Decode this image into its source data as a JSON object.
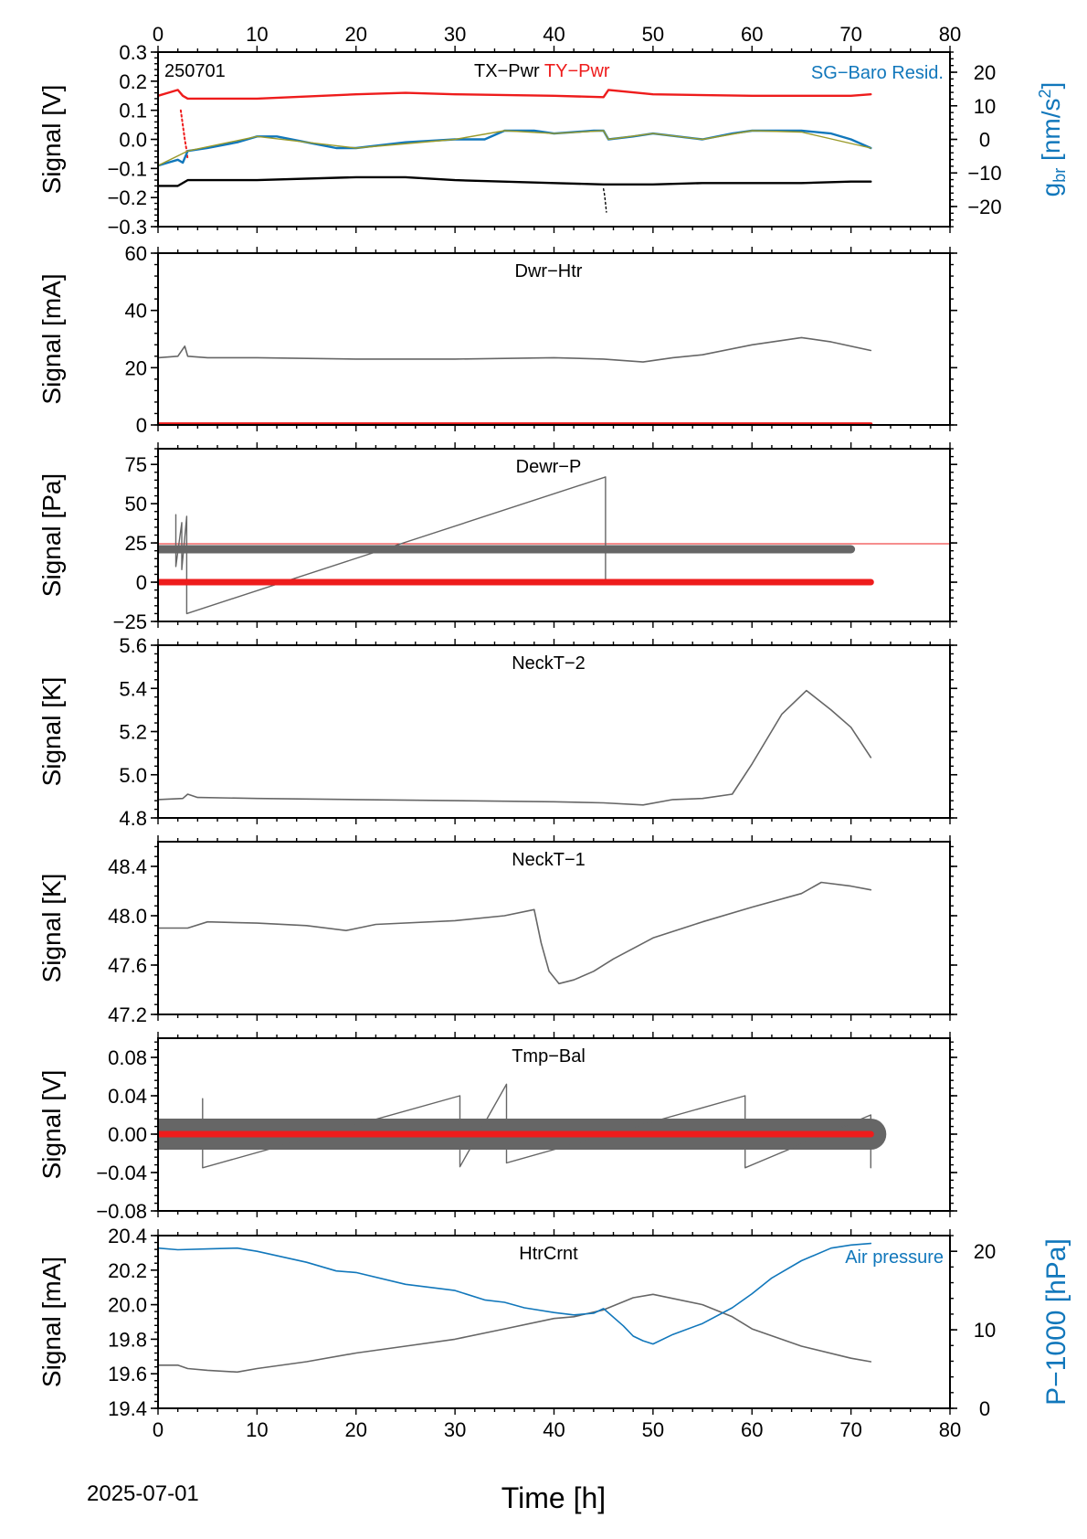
{
  "footer": {
    "date": "2025-07-01",
    "xlabel": "Time [h]"
  },
  "colors": {
    "black": "#000000",
    "red": "#ee1c1c",
    "blue": "#1177bb",
    "gray": "#666666",
    "olive": "#9a9a2a"
  },
  "chart_data": [
    {
      "id": "p1",
      "type": "line",
      "title": "TX−Pwr",
      "title2": "TY−Pwr",
      "corner_label": "250701",
      "right_label": "SG−Baro Resid.",
      "ylabel": "Signal [V]",
      "y2label_main": "g",
      "y2label_sub": "br",
      "y2label_tail": " [nm/s",
      "y2label_sup": "2",
      "y2label_end": "]",
      "xlim": [
        0,
        80
      ],
      "ylim": [
        -0.3,
        0.3
      ],
      "yticks": [
        -0.3,
        -0.2,
        -0.1,
        0.0,
        0.1,
        0.2,
        0.3
      ],
      "ytick_labels": [
        "−0.3",
        "−0.2",
        "−0.1",
        "0.0",
        "0.1",
        "0.2",
        "0.3"
      ],
      "y2lim": [
        -26,
        26
      ],
      "y2ticks": [
        -20,
        -10,
        0,
        10,
        20
      ],
      "y2tick_labels": [
        "−20",
        "−10",
        "0",
        "10",
        "20"
      ],
      "series": [
        {
          "color": "red",
          "width": 2.4,
          "x": [
            0,
            1,
            2,
            2.5,
            3,
            5,
            10,
            20,
            25,
            30,
            40,
            45,
            45.5,
            50,
            60,
            65,
            70,
            72
          ],
          "y": [
            0.15,
            0.16,
            0.17,
            0.15,
            0.14,
            0.14,
            0.14,
            0.155,
            0.16,
            0.155,
            0.15,
            0.145,
            0.17,
            0.155,
            0.15,
            0.15,
            0.15,
            0.155
          ]
        },
        {
          "color": "red",
          "width": 2.0,
          "dotted": true,
          "x": [
            2.3,
            2.5,
            2.7,
            2.9,
            3.0
          ],
          "y": [
            0.1,
            0.05,
            0.0,
            -0.04,
            -0.07
          ]
        },
        {
          "color": "blue",
          "width": 2.4,
          "x": [
            0,
            1,
            2,
            2.5,
            3,
            5,
            8,
            10,
            12,
            15,
            18,
            20,
            25,
            30,
            33,
            35,
            38,
            40,
            44,
            45,
            45.5,
            48,
            50,
            55,
            58,
            60,
            65,
            68,
            70,
            72
          ],
          "y": [
            -0.09,
            -0.08,
            -0.07,
            -0.08,
            -0.04,
            -0.03,
            -0.01,
            0.01,
            0.01,
            -0.01,
            -0.03,
            -0.03,
            -0.01,
            0.0,
            0.0,
            0.03,
            0.03,
            0.02,
            0.03,
            0.03,
            0.0,
            0.01,
            0.02,
            0.0,
            0.02,
            0.03,
            0.03,
            0.02,
            0.0,
            -0.03
          ]
        },
        {
          "color": "olive",
          "width": 1.4,
          "x": [
            0,
            3,
            10,
            20,
            30,
            35,
            40,
            45,
            45.5,
            50,
            55,
            60,
            65,
            72
          ],
          "y": [
            -0.09,
            -0.04,
            0.01,
            -0.03,
            0.0,
            0.03,
            0.02,
            0.03,
            0.0,
            0.02,
            0.0,
            0.03,
            0.025,
            -0.03
          ]
        },
        {
          "color": "black",
          "width": 2.4,
          "x": [
            0,
            2,
            3,
            5,
            10,
            20,
            25,
            30,
            40,
            45,
            50,
            55,
            60,
            65,
            70,
            72
          ],
          "y": [
            -0.16,
            -0.16,
            -0.14,
            -0.14,
            -0.14,
            -0.13,
            -0.13,
            -0.14,
            -0.15,
            -0.155,
            -0.155,
            -0.15,
            -0.15,
            -0.15,
            -0.145,
            -0.145
          ]
        },
        {
          "color": "black",
          "width": 1.4,
          "dotted": true,
          "x": [
            45,
            45.1,
            45.2,
            45.3
          ],
          "y": [
            -0.17,
            -0.19,
            -0.22,
            -0.25
          ]
        }
      ]
    },
    {
      "id": "p2",
      "type": "line",
      "title": "Dwr−Htr",
      "ylabel": "Signal [mA]",
      "xlim": [
        0,
        80
      ],
      "ylim": [
        0,
        60
      ],
      "yticks": [
        0,
        20,
        40,
        60
      ],
      "ytick_labels": [
        "0",
        "20",
        "40",
        "60"
      ],
      "series": [
        {
          "color": "gray",
          "width": 1.6,
          "x": [
            0,
            2,
            2.7,
            3,
            5,
            10,
            20,
            30,
            40,
            45,
            49,
            52,
            55,
            60,
            65,
            68,
            72
          ],
          "y": [
            23.5,
            24,
            27.5,
            24,
            23.5,
            23.5,
            23,
            23,
            23.5,
            23,
            22,
            23.5,
            24.5,
            28,
            30.5,
            29,
            26
          ]
        },
        {
          "color": "red",
          "width": 4,
          "x": [
            0,
            72
          ],
          "y": [
            0.3,
            0.3
          ]
        }
      ]
    },
    {
      "id": "p3",
      "type": "line",
      "title": "Dewr−P",
      "ylabel": "Signal [Pa]",
      "xlim": [
        0,
        80
      ],
      "ylim": [
        -25,
        85
      ],
      "yticks": [
        -25,
        0,
        25,
        50,
        75
      ],
      "ytick_labels": [
        "−25",
        "0",
        "25",
        "50",
        "75"
      ],
      "series": [
        {
          "color": "red",
          "width": 0.9,
          "x": [
            0,
            80
          ],
          "y": [
            24.5,
            24.5
          ]
        },
        {
          "color": "gray",
          "width": 9,
          "x": [
            0,
            10,
            20,
            30,
            40,
            50,
            60,
            70
          ],
          "y": [
            21,
            21,
            21,
            21,
            21,
            21,
            21,
            21
          ]
        },
        {
          "color": "gray",
          "width": 1.4,
          "x": [
            1.8,
            1.8,
            2.4,
            2.4,
            2.9,
            2.9,
            45.2,
            45.2
          ],
          "y": [
            43,
            10,
            38,
            8,
            42,
            -20,
            67,
            0
          ]
        },
        {
          "color": "red",
          "width": 7,
          "x": [
            0,
            72
          ],
          "y": [
            0,
            0
          ]
        }
      ]
    },
    {
      "id": "p4",
      "type": "line",
      "title": "NeckT−2",
      "ylabel": "Signal [K]",
      "xlim": [
        0,
        80
      ],
      "ylim": [
        4.8,
        5.6
      ],
      "yticks": [
        4.8,
        5.0,
        5.2,
        5.4,
        5.6
      ],
      "ytick_labels": [
        "4.8",
        "5.0",
        "5.2",
        "5.4",
        "5.6"
      ],
      "series": [
        {
          "color": "gray",
          "width": 1.6,
          "x": [
            0,
            2.5,
            3,
            4,
            10,
            20,
            30,
            40,
            45,
            49,
            52,
            55,
            58,
            60,
            63,
            65.5,
            68,
            70,
            72
          ],
          "y": [
            4.885,
            4.89,
            4.91,
            4.895,
            4.89,
            4.885,
            4.88,
            4.875,
            4.87,
            4.86,
            4.885,
            4.89,
            4.91,
            5.05,
            5.28,
            5.39,
            5.3,
            5.22,
            5.08
          ]
        }
      ]
    },
    {
      "id": "p5",
      "type": "line",
      "title": "NeckT−1",
      "ylabel": "Signal [K]",
      "xlim": [
        0,
        80
      ],
      "ylim": [
        47.2,
        48.6
      ],
      "yticks": [
        47.2,
        47.6,
        48.0,
        48.4
      ],
      "ytick_labels": [
        "47.2",
        "47.6",
        "48.0",
        "48.4"
      ],
      "series": [
        {
          "color": "gray",
          "width": 1.6,
          "x": [
            0,
            3,
            5,
            10,
            15,
            19,
            22,
            30,
            35,
            38,
            38.7,
            39.5,
            40.5,
            42,
            44,
            46,
            50,
            55,
            60,
            65,
            67,
            70,
            72
          ],
          "y": [
            47.9,
            47.9,
            47.95,
            47.94,
            47.92,
            47.88,
            47.93,
            47.96,
            48.0,
            48.05,
            47.78,
            47.55,
            47.45,
            47.48,
            47.55,
            47.65,
            47.82,
            47.95,
            48.07,
            48.18,
            48.27,
            48.24,
            48.21
          ]
        }
      ]
    },
    {
      "id": "p6",
      "type": "line",
      "title": "Tmp−Bal",
      "ylabel": "Signal [V]",
      "xlim": [
        0,
        80
      ],
      "ylim": [
        -0.08,
        0.1
      ],
      "yticks": [
        -0.08,
        -0.04,
        0.0,
        0.04,
        0.08
      ],
      "ytick_labels": [
        "−0.08",
        "−0.04",
        "0.00",
        "0.04",
        "0.08"
      ],
      "series": [
        {
          "color": "gray",
          "width": 34,
          "x": [
            0,
            10,
            20,
            30,
            40,
            50,
            60,
            72
          ],
          "y": [
            0.0,
            0.0,
            0.0,
            0.0,
            0.0,
            0.0,
            0.0,
            0.0
          ]
        },
        {
          "color": "gray",
          "width": 1.4,
          "x": [
            4.5,
            4.5,
            30.5,
            30.5,
            35.2,
            35.2,
            59.3,
            59.3,
            72,
            72
          ],
          "y": [
            0.037,
            -0.035,
            0.04,
            -0.034,
            0.052,
            -0.03,
            0.04,
            -0.035,
            0.02,
            -0.035
          ]
        },
        {
          "color": "red",
          "width": 7,
          "x": [
            0,
            72
          ],
          "y": [
            0,
            0
          ]
        }
      ]
    },
    {
      "id": "p7",
      "type": "line",
      "title": "HtrCrnt",
      "right_label": "Air pressure",
      "ylabel": "Signal [mA]",
      "y2label": "P−1000 [hPa]",
      "xlim": [
        0,
        80
      ],
      "ylim": [
        19.4,
        20.4
      ],
      "yticks": [
        19.4,
        19.6,
        19.8,
        20.0,
        20.2,
        20.4
      ],
      "ytick_labels": [
        "19.4",
        "19.6",
        "19.8",
        "20.0",
        "20.2",
        "20.4"
      ],
      "y2lim": [
        0,
        22
      ],
      "y2ticks": [
        0,
        10,
        20
      ],
      "y2tick_labels": [
        "0",
        "10",
        "20"
      ],
      "series": [
        {
          "color": "gray",
          "width": 1.6,
          "x": [
            0,
            2,
            3,
            5,
            8,
            10,
            15,
            20,
            25,
            30,
            35,
            40,
            42,
            45,
            48,
            50,
            55,
            58,
            60,
            65,
            70,
            72
          ],
          "y": [
            19.65,
            19.65,
            19.63,
            19.62,
            19.61,
            19.63,
            19.67,
            19.72,
            19.76,
            19.8,
            19.86,
            19.92,
            19.93,
            19.97,
            20.04,
            20.06,
            20.0,
            19.93,
            19.86,
            19.76,
            19.69,
            19.67
          ]
        },
        {
          "axis": "y2",
          "color": "blue",
          "width": 1.6,
          "x": [
            0,
            2,
            5,
            8,
            10,
            15,
            18,
            20,
            25,
            30,
            33,
            35,
            37,
            40,
            42,
            44,
            45,
            47,
            48,
            49,
            50,
            52,
            55,
            58,
            60,
            62,
            65,
            68,
            70,
            72
          ],
          "y": [
            20.4,
            20.2,
            20.3,
            20.4,
            20.0,
            18.6,
            17.5,
            17.3,
            15.8,
            15.0,
            13.8,
            13.5,
            12.8,
            12.2,
            11.9,
            12.1,
            12.7,
            10.5,
            9.2,
            8.6,
            8.2,
            9.4,
            10.8,
            12.8,
            14.6,
            16.6,
            18.8,
            20.4,
            20.8,
            21.0
          ]
        }
      ]
    }
  ]
}
